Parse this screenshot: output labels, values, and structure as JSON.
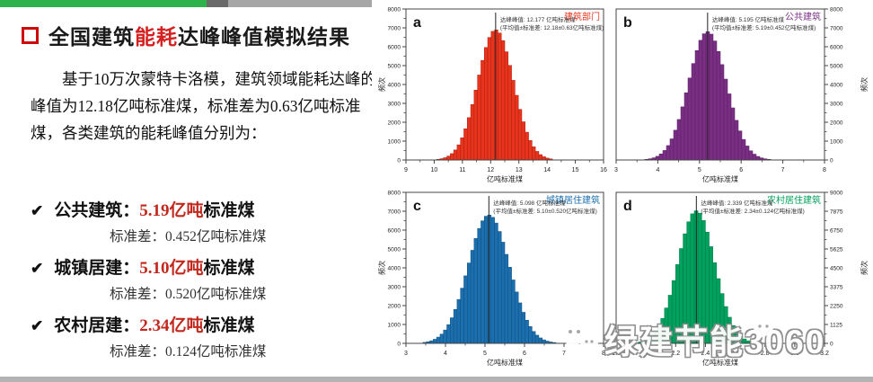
{
  "topbar": {
    "green": "#2eb24c",
    "dark": "#6a6a6a",
    "gray": "#a6a6a6"
  },
  "left_panel": {
    "title": {
      "pre": "全国建筑",
      "highlight": "能耗",
      "post": "达峰峰值模拟结果"
    },
    "accent_red": "#d42020",
    "paragraph": "基于10万次蒙特卡洛模，建筑领域能耗达峰的峰值为12.18亿吨标准煤，标准差为0.63亿吨标准煤，各类建筑的能耗峰值分别为：",
    "bullets": [
      {
        "check": "✔",
        "label": "公共建筑：",
        "value": "5.19亿吨",
        "suffix": "标准煤",
        "std_label": "标准差：",
        "std_value": "0.452亿吨标准煤"
      },
      {
        "check": "✔",
        "label": "城镇居建：",
        "value": "5.10亿吨",
        "suffix": "标准煤",
        "std_label": "标准差：",
        "std_value": "0.520亿吨标准煤"
      },
      {
        "check": "✔",
        "label": "农村居建：",
        "value": "2.34亿吨",
        "suffix": "标准煤",
        "std_label": "标准差：",
        "std_value": "0.124亿吨标准煤"
      }
    ]
  },
  "watermark": {
    "text": "绿建节能3060",
    "icon": "wechat-icon"
  },
  "chart_data": [
    {
      "type": "histogram",
      "panel": "a",
      "series": "建筑部门",
      "color": "#e8341c",
      "edge_color": "#a81f0f",
      "mean": 12.177,
      "std": 0.63,
      "peak_frequency": 6900,
      "bins": 58,
      "annotation": [
        "达峰峰值: 12.177 亿吨标准煤",
        "(平均值±标准差: 12.18±0.63亿吨标准煤)"
      ],
      "xlabel": "亿吨标准煤",
      "ylabel": "频次",
      "xlim": [
        9,
        16
      ],
      "x_ticks": [
        9,
        10,
        11,
        12,
        13,
        14,
        15,
        16
      ],
      "x_tick_labels": [
        "9",
        "10",
        "11",
        "12",
        "13",
        "14",
        "15",
        "16"
      ],
      "ylim": [
        0,
        8000
      ],
      "y_ticks": [
        0,
        1000,
        2000,
        3000,
        4000,
        5000,
        6000,
        7000,
        8000
      ],
      "y_axis_side": "left"
    },
    {
      "type": "histogram",
      "panel": "b",
      "series": "公共建筑",
      "color": "#7a2f85",
      "edge_color": "#561f60",
      "mean": 5.195,
      "std": 0.452,
      "peak_frequency": 6800,
      "bins": 58,
      "annotation": [
        "达峰峰值: 5.195 亿吨标准煤",
        "(平均值±标准差: 5.19±0.452亿吨标准煤)"
      ],
      "xlabel": "亿吨标准煤",
      "ylabel": "频次",
      "xlim": [
        3,
        8
      ],
      "x_ticks": [
        3,
        4,
        5,
        6,
        7,
        8
      ],
      "x_tick_labels": [
        "3",
        "4",
        "5",
        "6",
        "7",
        "8"
      ],
      "ylim": [
        0,
        8000
      ],
      "y_ticks": [
        0,
        1000,
        2000,
        3000,
        4000,
        5000,
        6000,
        7000,
        8000
      ],
      "y_axis_side": "right"
    },
    {
      "type": "histogram",
      "panel": "c",
      "series": "城镇居住建筑",
      "color": "#1b6fae",
      "edge_color": "#114e7d",
      "mean": 5.098,
      "std": 0.52,
      "peak_frequency": 6800,
      "bins": 58,
      "annotation": [
        "达峰峰值: 5.098 亿吨标准煤",
        "(平均值±标准差: 5.10±0.520亿吨标准煤)"
      ],
      "xlabel": "亿吨标准煤",
      "ylabel": "频次",
      "xlim": [
        3,
        8
      ],
      "x_ticks": [
        3,
        4,
        5,
        6,
        7,
        8
      ],
      "x_tick_labels": [
        "3",
        "4",
        "5",
        "6",
        "7",
        "8"
      ],
      "ylim": [
        0,
        8000
      ],
      "y_ticks": [
        0,
        1000,
        2000,
        3000,
        4000,
        5000,
        6000,
        7000,
        8000
      ],
      "y_axis_side": "left"
    },
    {
      "type": "histogram",
      "panel": "d",
      "series": "农村居住建筑",
      "color": "#00a15e",
      "edge_color": "#007a45",
      "mean": 2.339,
      "std": 0.124,
      "peak_frequency": 7900,
      "bins": 56,
      "annotation": [
        "达峰峰值: 2.339 亿吨标准煤",
        "(平均值±标准差: 2.34±0.124亿吨标准煤)"
      ],
      "xlabel": "亿吨标准煤",
      "ylabel": "频次",
      "xlim": [
        1.8,
        3.2
      ],
      "x_ticks": [
        1.8,
        2.0,
        2.2,
        2.4,
        2.6,
        2.8,
        3.0,
        3.2
      ],
      "x_tick_labels": [
        "1.8",
        "2.0",
        "2.2",
        "2.4",
        "2.6",
        "2.8",
        "3.0",
        "3.2"
      ],
      "ylim": [
        0,
        9000
      ],
      "y_ticks": [
        0,
        1125,
        2250,
        3375,
        4500,
        5625,
        6750,
        7875,
        9000
      ],
      "y_axis_side": "right"
    }
  ]
}
